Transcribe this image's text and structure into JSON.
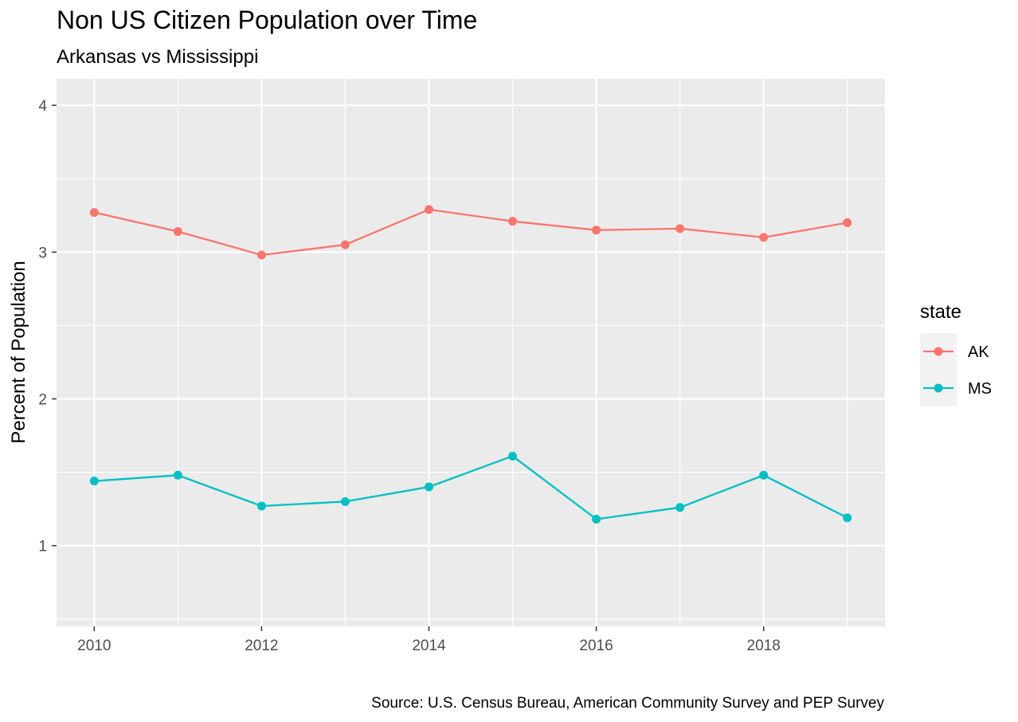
{
  "chart_data": {
    "type": "line",
    "title": "Non US Citizen Population over Time",
    "subtitle": "Arkansas vs Mississippi",
    "xlabel": "",
    "ylabel": "Percent of Population",
    "caption": "Source: U.S. Census Bureau, American Community Survey and PEP Survey",
    "x": [
      2010,
      2011,
      2012,
      2013,
      2014,
      2015,
      2016,
      2017,
      2018,
      2019
    ],
    "x_ticks": [
      2010,
      2012,
      2014,
      2016,
      2018
    ],
    "y_ticks": [
      1,
      2,
      3,
      4
    ],
    "x_tick_labels": [
      "2010",
      "2012",
      "2014",
      "2016",
      "2018"
    ],
    "y_tick_labels": [
      "1",
      "2",
      "3",
      "4"
    ],
    "xlim": [
      2009.55,
      2019.45
    ],
    "ylim": [
      0.45,
      4.18
    ],
    "grid": true,
    "legend": {
      "title": "state",
      "placement": "right"
    },
    "series": [
      {
        "name": "AK",
        "color": "#F8766D",
        "values": [
          3.27,
          3.14,
          2.98,
          3.05,
          3.29,
          3.21,
          3.15,
          3.16,
          3.1,
          3.2
        ]
      },
      {
        "name": "MS",
        "color": "#00BFC4",
        "values": [
          1.44,
          1.48,
          1.27,
          1.3,
          1.4,
          1.61,
          1.18,
          1.26,
          1.48,
          1.19
        ]
      }
    ],
    "panel_color": "#EBEBEB",
    "grid_color": "#FFFFFF"
  }
}
